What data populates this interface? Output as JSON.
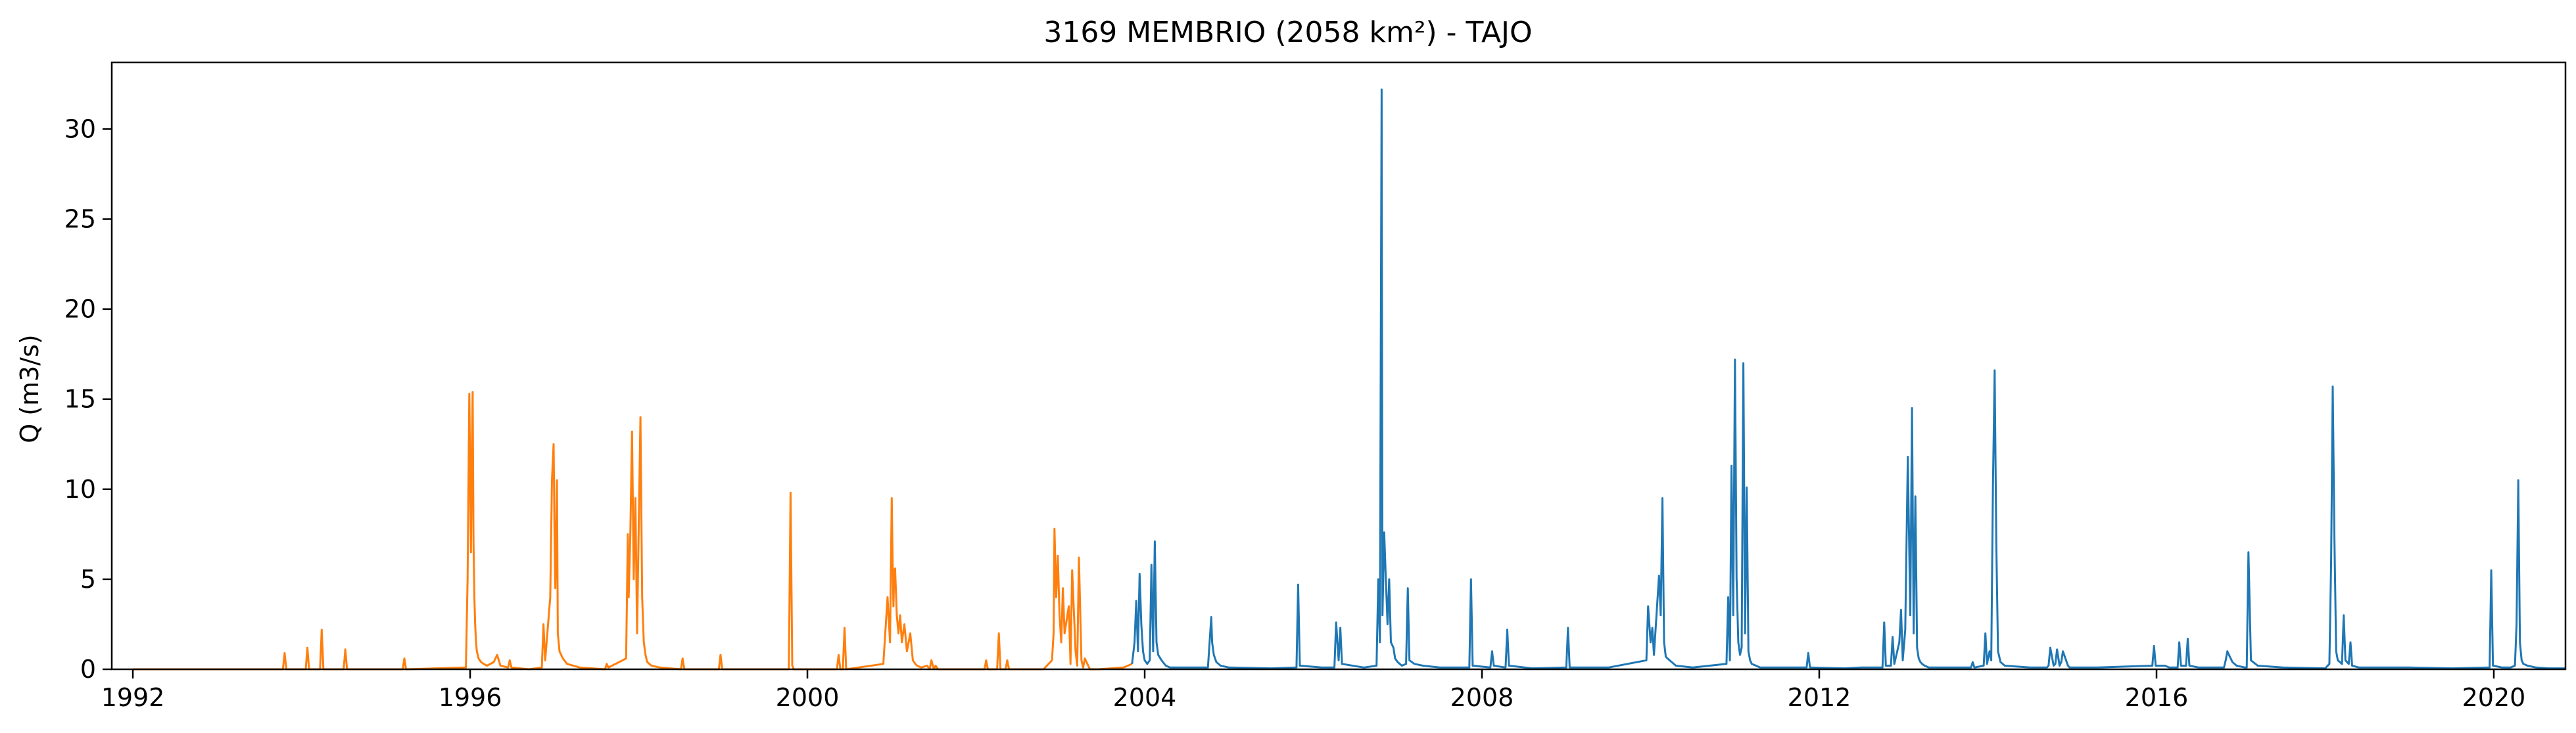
{
  "chart_data": {
    "type": "line",
    "title": "3169 MEMBRIO (2058 km²) - TAJO",
    "xlabel": "",
    "ylabel": "Q (m3/s)",
    "xlim": [
      1991.75,
      2020.85
    ],
    "ylim": [
      0,
      33.7
    ],
    "xticks": [
      1992,
      1996,
      2000,
      2004,
      2008,
      2012,
      2016,
      2020
    ],
    "yticks": [
      0,
      5,
      10,
      15,
      20,
      25,
      30
    ],
    "legend": "none",
    "grid": false,
    "series": [
      {
        "color": "#ff7f0e",
        "x": [
          1992.0,
          1993.78,
          1993.8,
          1993.82,
          1993.84,
          1994.05,
          1994.07,
          1994.09,
          1994.22,
          1994.24,
          1994.26,
          1994.5,
          1994.52,
          1994.54,
          1995.2,
          1995.22,
          1995.24,
          1995.95,
          1995.97,
          1995.99,
          1996.01,
          1996.02,
          1996.03,
          1996.04,
          1996.05,
          1996.06,
          1996.07,
          1996.08,
          1996.1,
          1996.13,
          1996.16,
          1996.2,
          1996.28,
          1996.32,
          1996.36,
          1996.45,
          1996.47,
          1996.49,
          1996.7,
          1996.85,
          1996.87,
          1996.89,
          1996.95,
          1996.97,
          1996.99,
          1997.0,
          1997.01,
          1997.02,
          1997.03,
          1997.04,
          1997.06,
          1997.1,
          1997.15,
          1997.3,
          1997.6,
          1997.62,
          1997.64,
          1997.85,
          1997.87,
          1997.88,
          1997.9,
          1997.92,
          1997.94,
          1997.96,
          1997.98,
          1998.0,
          1998.02,
          1998.04,
          1998.06,
          1998.08,
          1998.1,
          1998.15,
          1998.25,
          1998.5,
          1998.52,
          1998.54,
          1998.95,
          1998.97,
          1998.99,
          1999.3,
          1999.78,
          1999.8,
          1999.82,
          1999.84,
          2000.0,
          2000.35,
          2000.37,
          2000.39,
          2000.42,
          2000.44,
          2000.46,
          2000.9,
          2000.95,
          2000.98,
          2001.0,
          2001.01,
          2001.02,
          2001.03,
          2001.04,
          2001.06,
          2001.08,
          2001.1,
          2001.12,
          2001.15,
          2001.18,
          2001.22,
          2001.25,
          2001.28,
          2001.3,
          2001.35,
          2001.42,
          2001.45,
          2001.47,
          2001.5,
          2001.52,
          2001.55,
          2002.0,
          2002.1,
          2002.12,
          2002.14,
          2002.25,
          2002.27,
          2002.29,
          2002.35,
          2002.37,
          2002.39,
          2002.8,
          2002.9,
          2002.92,
          2002.93,
          2002.95,
          2002.97,
          2002.99,
          2003.01,
          2003.03,
          2003.05,
          2003.1,
          2003.12,
          2003.14,
          2003.18,
          2003.2,
          2003.22,
          2003.25,
          2003.27,
          2003.29,
          2003.35,
          2003.45,
          2003.75,
          2003.85
        ],
        "y": [
          0,
          0,
          0.9,
          0,
          0,
          0,
          1.2,
          0,
          0,
          2.2,
          0,
          0,
          1.1,
          0,
          0,
          0.6,
          0,
          0.1,
          5,
          15.3,
          6.5,
          12,
          15.4,
          7,
          4,
          2.5,
          1.5,
          1,
          0.6,
          0.4,
          0.3,
          0.2,
          0.4,
          0.8,
          0.2,
          0.1,
          0.5,
          0.1,
          0,
          0.1,
          2.5,
          0.5,
          4,
          10.5,
          12.5,
          8,
          4.5,
          7,
          10.5,
          2,
          1,
          0.6,
          0.3,
          0.1,
          0,
          0.3,
          0.1,
          0.6,
          7.5,
          4,
          7.5,
          13.2,
          5,
          9.5,
          2,
          8,
          14,
          4,
          1.5,
          0.8,
          0.4,
          0.2,
          0.1,
          0,
          0.6,
          0,
          0,
          0.8,
          0,
          0,
          0,
          9.8,
          0.2,
          0,
          0,
          0,
          0.8,
          0,
          0,
          2.3,
          0,
          0.3,
          4,
          1.5,
          9.5,
          6,
          3.5,
          5.5,
          5.6,
          3,
          2,
          3,
          1.5,
          2.5,
          1,
          2,
          0.5,
          0.3,
          0.2,
          0.1,
          0.2,
          0,
          0.5,
          0,
          0.2,
          0,
          0,
          0,
          0.5,
          0,
          0,
          2,
          0,
          0,
          0.5,
          0,
          0,
          0.5,
          2,
          7.8,
          4,
          6.3,
          3,
          1.5,
          4.5,
          2,
          3.5,
          0.3,
          5.5,
          1,
          0.2,
          6.2,
          0.5,
          0.1,
          0.6,
          0,
          0,
          0.1,
          0.3
        ]
      },
      {
        "color": "#1f77b4",
        "x": [
          2003.85,
          2003.88,
          2003.9,
          2003.92,
          2003.94,
          2003.96,
          2003.98,
          2004.0,
          2004.03,
          2004.06,
          2004.08,
          2004.1,
          2004.12,
          2004.14,
          2004.16,
          2004.2,
          2004.25,
          2004.3,
          2004.5,
          2004.75,
          2004.79,
          2004.8,
          2004.82,
          2004.85,
          2004.9,
          2005.0,
          2005.5,
          2005.8,
          2005.82,
          2005.84,
          2006.1,
          2006.25,
          2006.27,
          2006.3,
          2006.32,
          2006.34,
          2006.6,
          2006.75,
          2006.77,
          2006.79,
          2006.8,
          2006.81,
          2006.82,
          2006.84,
          2006.86,
          2006.88,
          2006.9,
          2006.92,
          2006.95,
          2006.97,
          2007.0,
          2007.05,
          2007.1,
          2007.12,
          2007.14,
          2007.2,
          2007.3,
          2007.5,
          2007.8,
          2007.85,
          2007.87,
          2007.89,
          2008.1,
          2008.12,
          2008.14,
          2008.28,
          2008.3,
          2008.32,
          2008.6,
          2009.0,
          2009.02,
          2009.04,
          2009.5,
          2009.95,
          2009.97,
          2010.0,
          2010.02,
          2010.04,
          2010.1,
          2010.12,
          2010.14,
          2010.16,
          2010.18,
          2010.2,
          2010.25,
          2010.3,
          2010.5,
          2010.9,
          2010.92,
          2010.94,
          2010.96,
          2010.98,
          2011.0,
          2011.02,
          2011.04,
          2011.06,
          2011.08,
          2011.1,
          2011.12,
          2011.14,
          2011.16,
          2011.18,
          2011.2,
          2011.25,
          2011.3,
          2011.5,
          2011.85,
          2011.87,
          2011.89,
          2012.3,
          2012.5,
          2012.75,
          2012.77,
          2012.79,
          2012.85,
          2012.87,
          2012.89,
          2012.95,
          2012.97,
          2012.99,
          2013.02,
          2013.05,
          2013.08,
          2013.1,
          2013.12,
          2013.14,
          2013.16,
          2013.18,
          2013.2,
          2013.22,
          2013.25,
          2013.3,
          2013.4,
          2013.8,
          2013.82,
          2013.84,
          2013.95,
          2013.97,
          2013.99,
          2014.02,
          2014.04,
          2014.06,
          2014.08,
          2014.1,
          2014.12,
          2014.15,
          2014.2,
          2014.5,
          2014.7,
          2014.72,
          2014.74,
          2014.78,
          2014.8,
          2014.82,
          2014.85,
          2014.87,
          2014.89,
          2014.95,
          2014.97,
          2014.99,
          2015.3,
          2015.95,
          2015.97,
          2015.99,
          2016.1,
          2016.15,
          2016.25,
          2016.27,
          2016.29,
          2016.35,
          2016.37,
          2016.39,
          2016.5,
          2016.8,
          2016.82,
          2016.84,
          2016.9,
          2016.95,
          2017.05,
          2017.07,
          2017.09,
          2017.12,
          2017.2,
          2017.5,
          2018.0,
          2018.05,
          2018.07,
          2018.09,
          2018.11,
          2018.13,
          2018.15,
          2018.2,
          2018.22,
          2018.24,
          2018.28,
          2018.3,
          2018.32,
          2018.4,
          2018.8,
          2019.0,
          2019.5,
          2019.95,
          2019.97,
          2019.99,
          2020.1,
          2020.2,
          2020.25,
          2020.27,
          2020.29,
          2020.31,
          2020.33,
          2020.35,
          2020.4,
          2020.5,
          2020.65,
          2020.85
        ],
        "y": [
          0.3,
          1.5,
          3.8,
          1,
          5.3,
          2.5,
          1,
          0.5,
          0.3,
          0.5,
          5.8,
          1,
          7.1,
          1.5,
          0.8,
          0.5,
          0.2,
          0.1,
          0.1,
          0.1,
          2.9,
          1.5,
          0.8,
          0.4,
          0.2,
          0.1,
          0.05,
          0.1,
          4.7,
          0.2,
          0.1,
          0.1,
          2.6,
          0.5,
          2.3,
          0.3,
          0.1,
          0.2,
          5,
          1.5,
          17.5,
          32.2,
          3,
          7.6,
          5,
          2.5,
          5,
          1.5,
          1.2,
          0.6,
          0.4,
          0.2,
          0.3,
          4.5,
          0.5,
          0.3,
          0.2,
          0.1,
          0.1,
          0.1,
          5,
          0.2,
          0.1,
          1,
          0.2,
          0.1,
          2.2,
          0.2,
          0.05,
          0.1,
          2.3,
          0.1,
          0.1,
          0.5,
          3.5,
          1.5,
          2.3,
          0.8,
          5.2,
          3,
          9.5,
          1.5,
          0.7,
          0.6,
          0.4,
          0.2,
          0.1,
          0.3,
          4,
          0.5,
          11.3,
          3,
          17.2,
          5,
          1.5,
          0.8,
          1.2,
          17,
          2,
          10.1,
          1,
          0.5,
          0.3,
          0.2,
          0.1,
          0.1,
          0.1,
          0.9,
          0.1,
          0.05,
          0.1,
          0.1,
          2.6,
          0.2,
          0.2,
          1.8,
          0.3,
          1.5,
          3.3,
          0.5,
          2.2,
          11.8,
          3,
          14.5,
          2,
          9.6,
          1.2,
          0.6,
          0.4,
          0.3,
          0.2,
          0.1,
          0.1,
          0.1,
          0.4,
          0.1,
          0.2,
          2,
          0.3,
          1,
          0.5,
          10.2,
          16.6,
          7,
          1,
          0.4,
          0.2,
          0.1,
          0.1,
          0.2,
          1.2,
          0.2,
          0.3,
          1.1,
          0.2,
          0.4,
          1,
          0.2,
          0.1,
          0.1,
          0.1,
          0.2,
          1.3,
          0.2,
          0.2,
          0.1,
          0.1,
          1.5,
          0.2,
          0.2,
          1.7,
          0.2,
          0.1,
          0.1,
          0.5,
          1,
          0.4,
          0.2,
          0.1,
          0.1,
          6.5,
          0.5,
          0.2,
          0.1,
          0.05,
          0.3,
          5.8,
          15.7,
          7.2,
          1,
          0.5,
          0.3,
          3,
          0.5,
          0.3,
          1.5,
          0.2,
          0.1,
          0.1,
          0.1,
          0.05,
          0.1,
          5.5,
          0.2,
          0.1,
          0.1,
          0.2,
          2.5,
          10.5,
          1.5,
          0.5,
          0.3,
          0.2,
          0.1,
          0.05,
          0.05
        ]
      }
    ]
  }
}
